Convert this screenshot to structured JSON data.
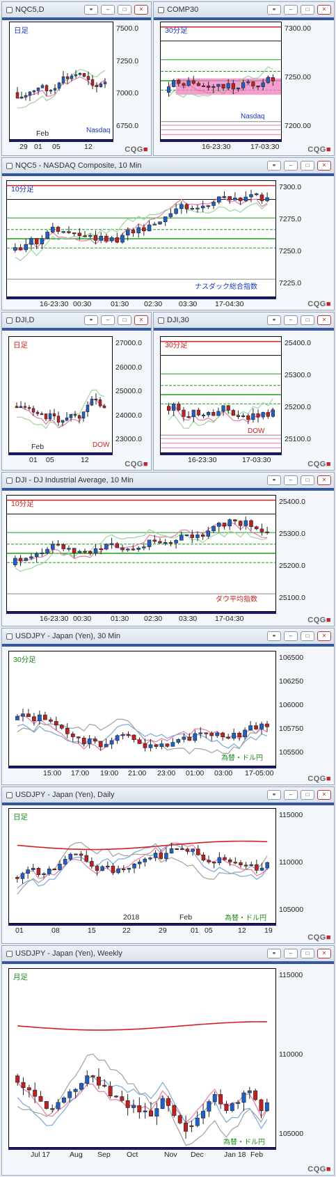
{
  "windows": [
    {
      "id": "nqc5d",
      "title": "NQC5,D",
      "period": "日足",
      "note": "Nasdaq",
      "x_labels": [
        "29",
        "01",
        "05",
        "12"
      ],
      "x_extra": "Feb",
      "y_labels": [
        "7500.0",
        "7250.0",
        "7000.0",
        "6750.0"
      ]
    },
    {
      "id": "comp30",
      "title": "COMP30",
      "period": "30分足",
      "note": "Nasdaq",
      "x_labels": [
        "16-23:30",
        "17-03:30"
      ],
      "y_labels": [
        "7300.00",
        "7250.00",
        "7200.00"
      ]
    },
    {
      "id": "nqc5_10",
      "title": "NQC5 - NASDAQ Composite, 10 Min",
      "period": "10分足",
      "note": "ナスダック総合指数",
      "x_labels": [
        "16-23:30",
        "00:30",
        "01:30",
        "02:30",
        "03:30",
        "17-04:30"
      ],
      "y_labels": [
        "7300.0",
        "7275.0",
        "7250.0",
        "7225.0"
      ]
    },
    {
      "id": "djid",
      "title": "DJI,D",
      "period": "日足",
      "note": "DOW",
      "x_labels": [
        "01",
        "05",
        "12"
      ],
      "x_extra": "Feb",
      "y_labels": [
        "27000.0",
        "26000.0",
        "25000.0",
        "24000.0",
        "23000.0"
      ]
    },
    {
      "id": "dji30",
      "title": "DJI,30",
      "period": "30分足",
      "note": "DOW",
      "x_labels": [
        "16-23:30",
        "17-03:30"
      ],
      "y_labels": [
        "25400.0",
        "25300.0",
        "25200.0",
        "25100.0"
      ]
    },
    {
      "id": "dji10",
      "title": "DJI - DJ Industrial Average, 10 Min",
      "period": "10分足",
      "note": "ダウ平均指数",
      "x_labels": [
        "16-23:30",
        "00:30",
        "01:30",
        "02:30",
        "03:30",
        "17-04:30"
      ],
      "y_labels": [
        "25400.0",
        "25300.0",
        "25200.0",
        "25100.0"
      ]
    },
    {
      "id": "usdjpy30",
      "title": "USDJPY - Japan (Yen), 30 Min",
      "period": "30分足",
      "note": "為替・ドル円",
      "x_labels": [
        "15:00",
        "17:00",
        "19:00",
        "21:00",
        "23:00",
        "01:00",
        "03:00",
        "17-05:00"
      ],
      "y_labels": [
        "106500",
        "106250",
        "106000",
        "105750",
        "105500"
      ]
    },
    {
      "id": "usdjpyd",
      "title": "USDJPY - Japan (Yen), Daily",
      "period": "日足",
      "note": "為替・ドル円",
      "x_labels": [
        "01",
        "08",
        "15",
        "22",
        "29",
        "01",
        "05",
        "12",
        "19"
      ],
      "x_extra": "2018",
      "x_extra2": "Feb",
      "y_labels": [
        "115000",
        "110000",
        "105000"
      ]
    },
    {
      "id": "usdjpyw",
      "title": "USDJPY - Japan (Yen), Weekly",
      "period": "月足",
      "note": "為替・ドル円",
      "x_labels": [
        "Jul 17",
        "Aug",
        "Sep",
        "Oct",
        "Nov",
        "Dec",
        "Jan 18",
        "Feb"
      ],
      "y_labels": [
        "115000",
        "110000",
        "105000"
      ]
    }
  ],
  "brand": {
    "text": "CQG",
    "mark": "■"
  },
  "buttons": {
    "link": "⚭",
    "minimize": "‒",
    "maximize": "□",
    "close": "✕"
  },
  "colors": {
    "up": "#1f5fc8",
    "down": "#c0201f",
    "ma_red": "#d02020",
    "ma_green": "#18a018",
    "ma_pink": "#e77aa6",
    "ma_blue": "#7aa8d8",
    "ma_grey": "#a0a0a0",
    "band": "#f07fc0"
  }
}
